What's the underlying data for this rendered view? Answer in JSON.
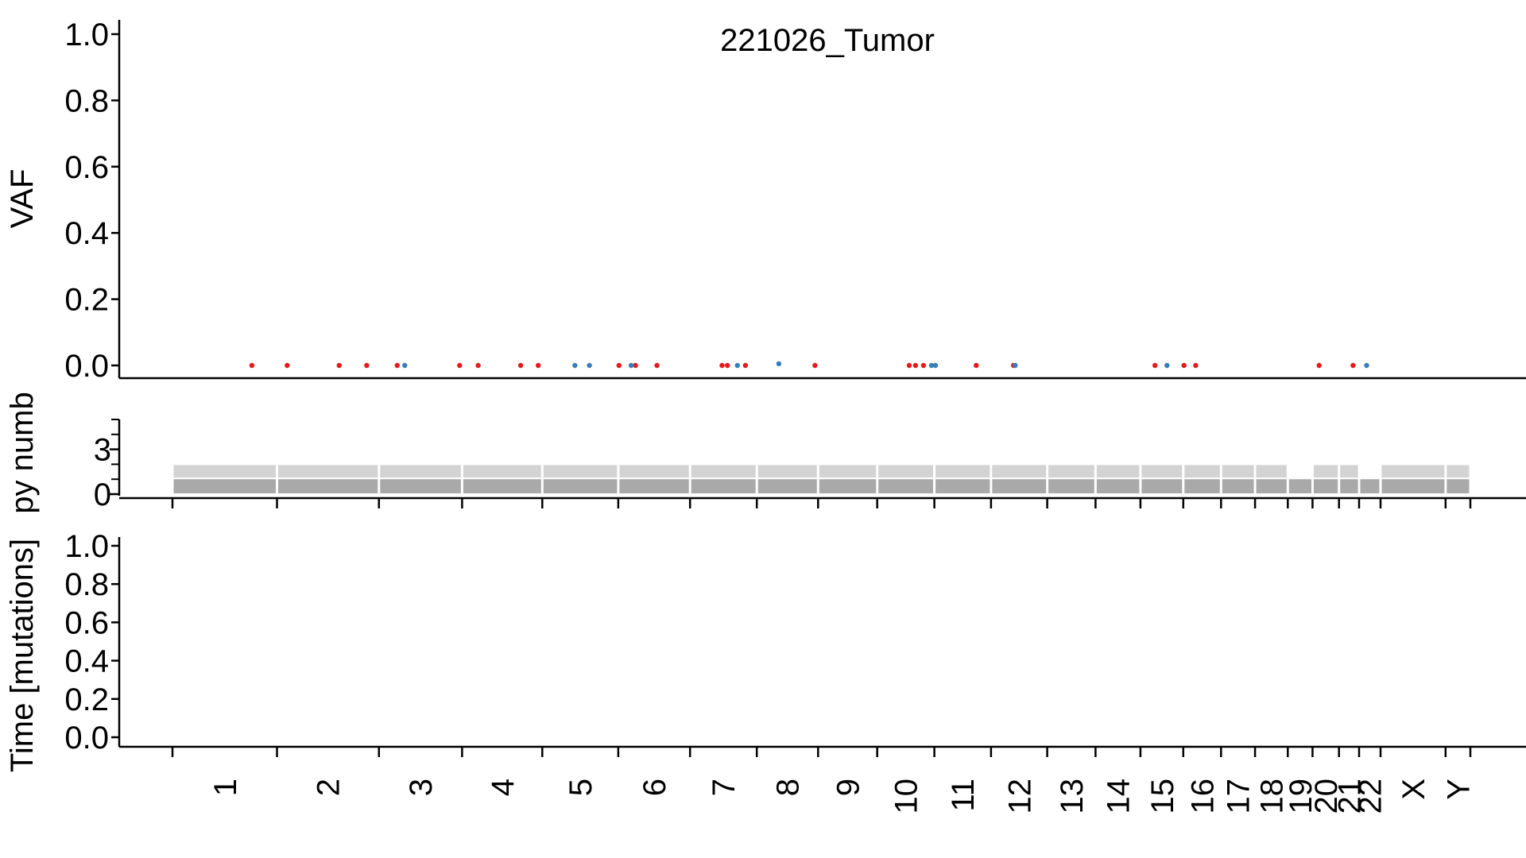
{
  "chart_data": [
    {
      "panel": "vaf",
      "type": "scatter",
      "title": "221026_Tumor",
      "ylabel": "VAF",
      "ylim": [
        0,
        1
      ],
      "yticks": [
        "0.0",
        "0.2",
        "0.4",
        "0.6",
        "0.8",
        "1.0"
      ],
      "grid": false,
      "colors": {
        "red": "#e41a1c",
        "blue": "#377eb8"
      },
      "series": [
        {
          "color": "red",
          "points": [
            {
              "chrom": "1",
              "pos": 0.76,
              "vaf": 0.0
            },
            {
              "chrom": "2",
              "pos": 0.1,
              "vaf": 0.0
            },
            {
              "chrom": "2",
              "pos": 0.61,
              "vaf": 0.0
            },
            {
              "chrom": "2",
              "pos": 0.88,
              "vaf": 0.0
            },
            {
              "chrom": "3",
              "pos": 0.22,
              "vaf": 0.0
            },
            {
              "chrom": "3",
              "pos": 0.97,
              "vaf": 0.0
            },
            {
              "chrom": "4",
              "pos": 0.2,
              "vaf": 0.0
            },
            {
              "chrom": "4",
              "pos": 0.73,
              "vaf": 0.0
            },
            {
              "chrom": "4",
              "pos": 0.95,
              "vaf": 0.0
            },
            {
              "chrom": "6",
              "pos": 0.01,
              "vaf": 0.0
            },
            {
              "chrom": "6",
              "pos": 0.24,
              "vaf": 0.0
            },
            {
              "chrom": "6",
              "pos": 0.54,
              "vaf": 0.0
            },
            {
              "chrom": "7",
              "pos": 0.48,
              "vaf": 0.0
            },
            {
              "chrom": "7",
              "pos": 0.56,
              "vaf": 0.0
            },
            {
              "chrom": "7",
              "pos": 0.83,
              "vaf": 0.0
            },
            {
              "chrom": "8",
              "pos": 0.95,
              "vaf": 0.0
            },
            {
              "chrom": "10",
              "pos": 0.56,
              "vaf": 0.0
            },
            {
              "chrom": "10",
              "pos": 0.67,
              "vaf": 0.0
            },
            {
              "chrom": "10",
              "pos": 0.81,
              "vaf": 0.0
            },
            {
              "chrom": "11",
              "pos": 0.74,
              "vaf": 0.0
            },
            {
              "chrom": "12",
              "pos": 0.4,
              "vaf": 0.0
            },
            {
              "chrom": "15",
              "pos": 0.34,
              "vaf": 0.0
            },
            {
              "chrom": "16",
              "pos": 0.02,
              "vaf": 0.0
            },
            {
              "chrom": "16",
              "pos": 0.33,
              "vaf": 0.0
            },
            {
              "chrom": "20",
              "pos": 0.25,
              "vaf": 0.0
            },
            {
              "chrom": "21",
              "pos": 0.7,
              "vaf": 0.0
            }
          ]
        },
        {
          "color": "blue",
          "points": [
            {
              "chrom": "3",
              "pos": 0.31,
              "vaf": 0.0
            },
            {
              "chrom": "5",
              "pos": 0.43,
              "vaf": 0.0
            },
            {
              "chrom": "5",
              "pos": 0.62,
              "vaf": 0.0
            },
            {
              "chrom": "6",
              "pos": 0.18,
              "vaf": 0.0
            },
            {
              "chrom": "7",
              "pos": 0.71,
              "vaf": 0.0
            },
            {
              "chrom": "8",
              "pos": 0.36,
              "vaf": 0.005
            },
            {
              "chrom": "10",
              "pos": 0.95,
              "vaf": 0.0
            },
            {
              "chrom": "11",
              "pos": 0.02,
              "vaf": 0.0
            },
            {
              "chrom": "12",
              "pos": 0.43,
              "vaf": 0.0
            },
            {
              "chrom": "15",
              "pos": 0.62,
              "vaf": 0.0
            },
            {
              "chrom": "22",
              "pos": 0.35,
              "vaf": 0.0
            }
          ]
        }
      ]
    },
    {
      "panel": "copy-number",
      "type": "bar",
      "ylabel": "Copy number",
      "ylabel_visible": "py numb",
      "ylim": [
        0,
        5
      ],
      "yticks": [
        "0",
        "3"
      ],
      "minor_yticks": [
        1,
        2,
        4,
        5
      ],
      "colors": {
        "major": "#d3d3d3",
        "minor": "#a9a9a9"
      },
      "segments": [
        {
          "chrom": "1",
          "major": 2,
          "minor": 1
        },
        {
          "chrom": "2",
          "major": 2,
          "minor": 1
        },
        {
          "chrom": "3",
          "major": 2,
          "minor": 1
        },
        {
          "chrom": "4",
          "major": 2,
          "minor": 1
        },
        {
          "chrom": "5",
          "major": 2,
          "minor": 1
        },
        {
          "chrom": "6",
          "major": 2,
          "minor": 1
        },
        {
          "chrom": "7",
          "major": 2,
          "minor": 1
        },
        {
          "chrom": "8",
          "major": 2,
          "minor": 1
        },
        {
          "chrom": "9",
          "major": 2,
          "minor": 1
        },
        {
          "chrom": "10",
          "major": 2,
          "minor": 1
        },
        {
          "chrom": "11",
          "major": 2,
          "minor": 1
        },
        {
          "chrom": "12",
          "major": 2,
          "minor": 1
        },
        {
          "chrom": "13",
          "major": 2,
          "minor": 1
        },
        {
          "chrom": "14",
          "major": 2,
          "minor": 1
        },
        {
          "chrom": "15",
          "major": 2,
          "minor": 1
        },
        {
          "chrom": "16",
          "major": 2,
          "minor": 1
        },
        {
          "chrom": "17",
          "major": 2,
          "minor": 1
        },
        {
          "chrom": "18",
          "major": 2,
          "minor": 1
        },
        {
          "chrom": "19",
          "major": 1,
          "minor": 1
        },
        {
          "chrom": "20",
          "major": 2,
          "minor": 1
        },
        {
          "chrom": "21",
          "major": 2,
          "minor": 1
        },
        {
          "chrom": "22",
          "major": 1,
          "minor": 1
        },
        {
          "chrom": "X",
          "major": 2,
          "minor": 1
        },
        {
          "chrom": "Y",
          "major": 2,
          "minor": 1
        }
      ]
    },
    {
      "panel": "timing",
      "type": "scatter",
      "ylabel": "Time [mutations]",
      "ylim": [
        0,
        1
      ],
      "yticks": [
        "0.0",
        "0.2",
        "0.4",
        "0.6",
        "0.8",
        "1.0"
      ],
      "points": []
    }
  ],
  "chromosomes": [
    {
      "label": "1",
      "size": 249
    },
    {
      "label": "2",
      "size": 243
    },
    {
      "label": "3",
      "size": 198
    },
    {
      "label": "4",
      "size": 191
    },
    {
      "label": "5",
      "size": 181
    },
    {
      "label": "6",
      "size": 171
    },
    {
      "label": "7",
      "size": 159
    },
    {
      "label": "8",
      "size": 146
    },
    {
      "label": "9",
      "size": 141
    },
    {
      "label": "10",
      "size": 136
    },
    {
      "label": "11",
      "size": 135
    },
    {
      "label": "12",
      "size": 134
    },
    {
      "label": "13",
      "size": 115
    },
    {
      "label": "14",
      "size": 107
    },
    {
      "label": "15",
      "size": 102
    },
    {
      "label": "16",
      "size": 90
    },
    {
      "label": "17",
      "size": 81
    },
    {
      "label": "18",
      "size": 78
    },
    {
      "label": "19",
      "size": 59
    },
    {
      "label": "20",
      "size": 63
    },
    {
      "label": "21",
      "size": 48
    },
    {
      "label": "22",
      "size": 51
    },
    {
      "label": "X",
      "size": 155
    },
    {
      "label": "Y",
      "size": 59
    }
  ]
}
